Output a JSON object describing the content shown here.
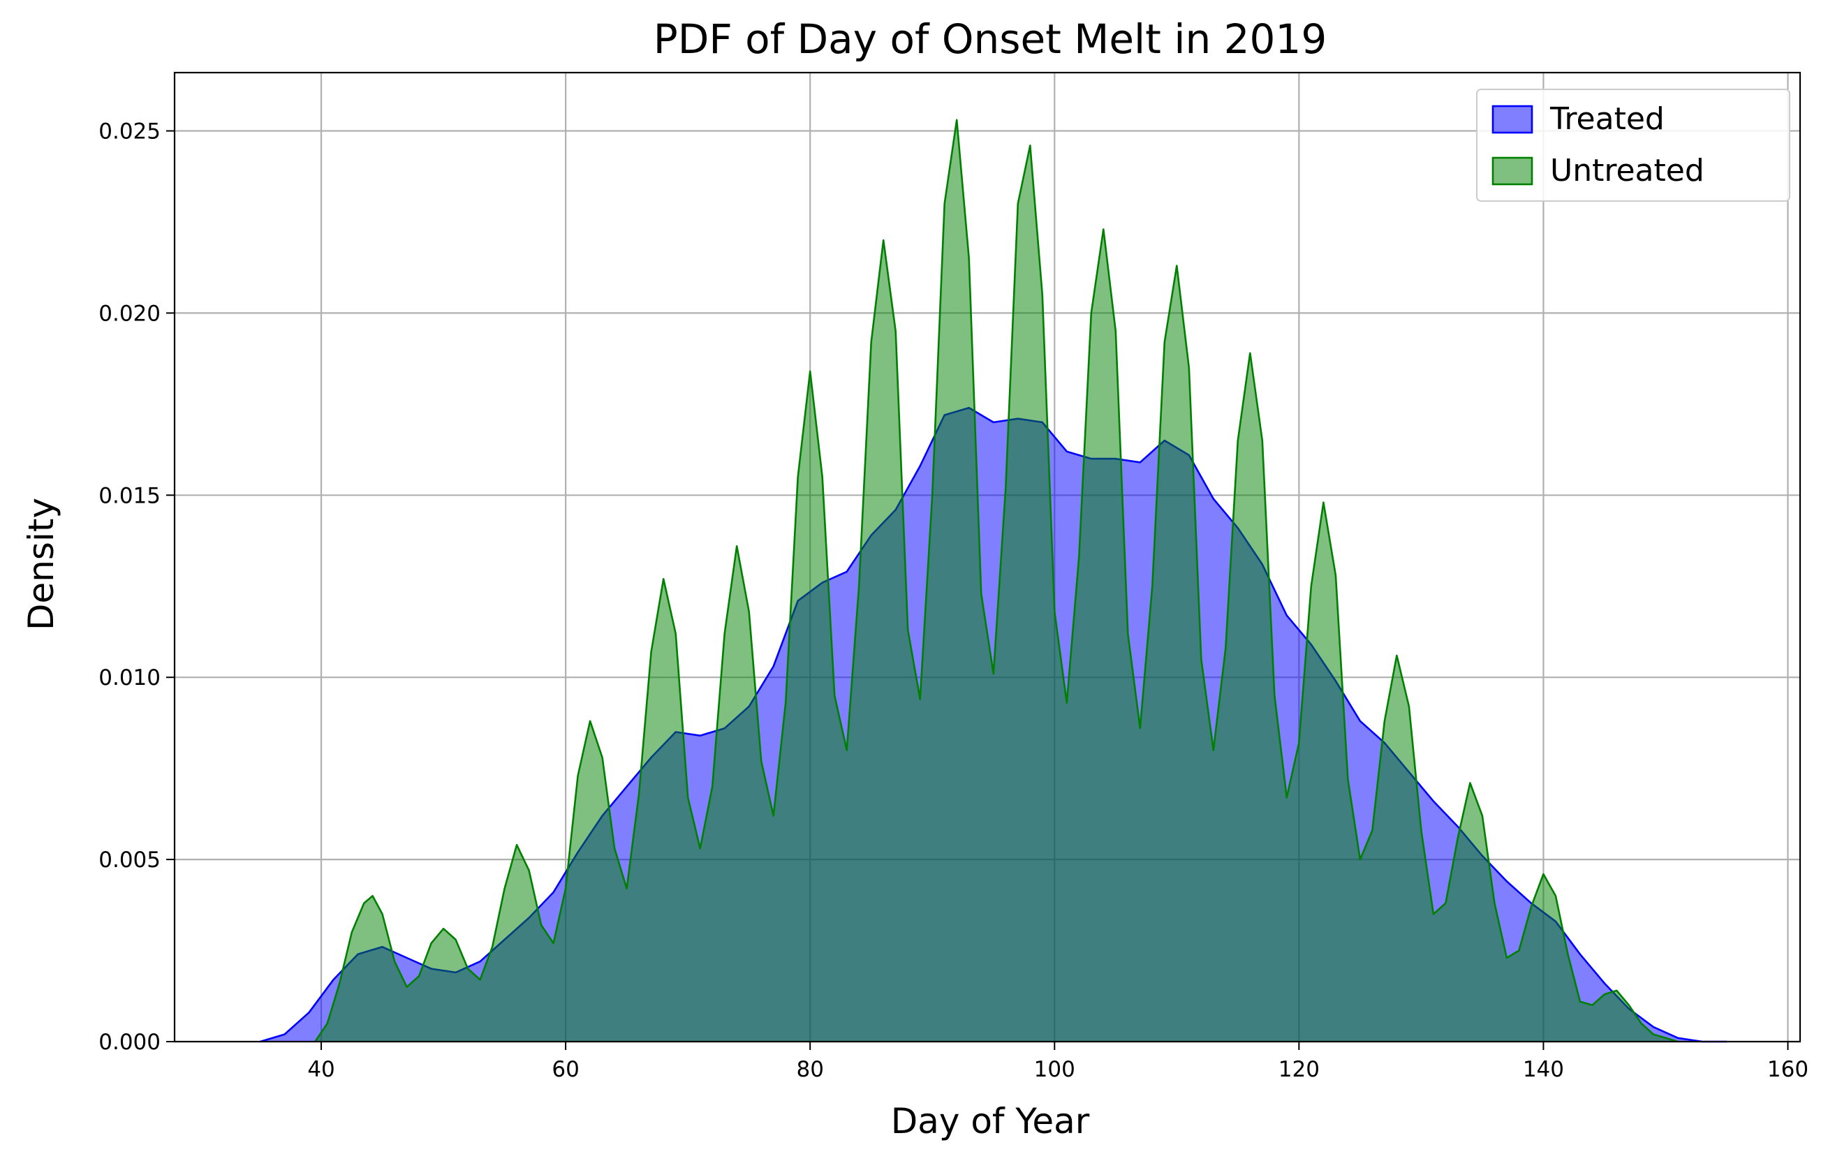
{
  "chart_data": {
    "type": "area",
    "title": "PDF of Day of Onset Melt in 2019",
    "xlabel": "Day of Year",
    "ylabel": "Density",
    "xlim": [
      28,
      161
    ],
    "ylim": [
      0,
      0.0266
    ],
    "xticks": [
      40,
      60,
      80,
      100,
      120,
      140,
      160
    ],
    "yticks": [
      0.0,
      0.005,
      0.01,
      0.015,
      0.02,
      0.025
    ],
    "xtick_labels": [
      "40",
      "60",
      "80",
      "100",
      "120",
      "140",
      "160"
    ],
    "ytick_labels": [
      "0.000",
      "0.005",
      "0.010",
      "0.015",
      "0.020",
      "0.025"
    ],
    "grid": true,
    "legend_position": "top-right",
    "series": [
      {
        "name": "Treated",
        "fill": "#0000ff",
        "fill_opacity": 0.5,
        "stroke": "#0000ff",
        "x": [
          35,
          37,
          39,
          41,
          43,
          45,
          47,
          49,
          51,
          53,
          55,
          57,
          59,
          61,
          63,
          65,
          67,
          69,
          71,
          73,
          75,
          77,
          79,
          81,
          83,
          85,
          87,
          89,
          91,
          93,
          95,
          97,
          99,
          101,
          103,
          105,
          107,
          109,
          111,
          113,
          115,
          117,
          119,
          121,
          123,
          125,
          127,
          129,
          131,
          133,
          135,
          137,
          139,
          141,
          143,
          145,
          147,
          149,
          151,
          153,
          155
        ],
        "y": [
          0.0,
          0.0002,
          0.0008,
          0.0017,
          0.0024,
          0.0026,
          0.0023,
          0.002,
          0.0019,
          0.0022,
          0.0028,
          0.0034,
          0.0041,
          0.0052,
          0.0062,
          0.007,
          0.0078,
          0.0085,
          0.0084,
          0.0086,
          0.0092,
          0.0103,
          0.0121,
          0.0126,
          0.0129,
          0.0139,
          0.0146,
          0.0158,
          0.0172,
          0.0174,
          0.017,
          0.0171,
          0.017,
          0.0162,
          0.016,
          0.016,
          0.0159,
          0.0165,
          0.0161,
          0.0149,
          0.0141,
          0.0131,
          0.0117,
          0.0109,
          0.0099,
          0.0088,
          0.0082,
          0.0074,
          0.0066,
          0.0059,
          0.0051,
          0.0044,
          0.0038,
          0.0033,
          0.0024,
          0.0016,
          0.0009,
          0.0004,
          0.0001,
          0.0,
          0.0
        ]
      },
      {
        "name": "Untreated",
        "fill": "#008000",
        "fill_opacity": 0.5,
        "stroke": "#008000",
        "x": [
          39.5,
          40.5,
          41.5,
          42.5,
          43.5,
          44.2,
          45,
          46,
          47,
          48,
          49,
          50,
          51,
          52,
          53,
          54,
          55,
          56,
          57,
          58,
          59,
          60,
          61,
          62,
          63,
          64,
          65,
          66,
          67,
          68,
          69,
          70,
          71,
          72,
          73,
          74,
          75,
          76,
          77,
          78,
          79,
          80,
          81,
          82,
          83,
          84,
          85,
          86,
          87,
          88,
          89,
          90,
          91,
          92,
          93,
          94,
          95,
          96,
          97,
          98,
          99,
          100,
          101,
          102,
          103,
          104,
          105,
          106,
          107,
          108,
          109,
          110,
          111,
          112,
          113,
          114,
          115,
          116,
          117,
          118,
          119,
          120,
          121,
          122,
          123,
          124,
          125,
          126,
          127,
          128,
          129,
          130,
          131,
          132,
          133,
          134,
          135,
          136,
          137,
          138,
          139,
          140,
          141,
          142,
          143,
          144,
          145,
          146,
          147,
          148,
          149,
          150,
          151
        ],
        "y": [
          0.0,
          0.0005,
          0.0016,
          0.003,
          0.0038,
          0.004,
          0.0035,
          0.0022,
          0.0015,
          0.0018,
          0.0027,
          0.0031,
          0.0028,
          0.002,
          0.0017,
          0.0026,
          0.0042,
          0.0054,
          0.0047,
          0.0032,
          0.0027,
          0.0042,
          0.0073,
          0.0088,
          0.0078,
          0.0053,
          0.0042,
          0.0068,
          0.0107,
          0.0127,
          0.0112,
          0.0067,
          0.0053,
          0.007,
          0.0112,
          0.0136,
          0.0118,
          0.0077,
          0.0062,
          0.0093,
          0.0155,
          0.0184,
          0.0155,
          0.0095,
          0.008,
          0.0125,
          0.0192,
          0.022,
          0.0195,
          0.0113,
          0.0094,
          0.015,
          0.023,
          0.0253,
          0.0215,
          0.0123,
          0.0101,
          0.0152,
          0.023,
          0.0246,
          0.0205,
          0.0118,
          0.0093,
          0.0133,
          0.02,
          0.0223,
          0.0195,
          0.0112,
          0.0086,
          0.0125,
          0.0192,
          0.0213,
          0.0185,
          0.0105,
          0.008,
          0.0108,
          0.0165,
          0.0189,
          0.0165,
          0.0095,
          0.0067,
          0.0082,
          0.0125,
          0.0148,
          0.0128,
          0.0072,
          0.005,
          0.0058,
          0.0088,
          0.0106,
          0.0092,
          0.0058,
          0.0035,
          0.0038,
          0.0056,
          0.0071,
          0.0062,
          0.0038,
          0.0023,
          0.0025,
          0.0037,
          0.0046,
          0.004,
          0.0024,
          0.0011,
          0.001,
          0.0013,
          0.0014,
          0.001,
          0.0005,
          0.0002,
          0.0001,
          0.0
        ]
      }
    ]
  }
}
